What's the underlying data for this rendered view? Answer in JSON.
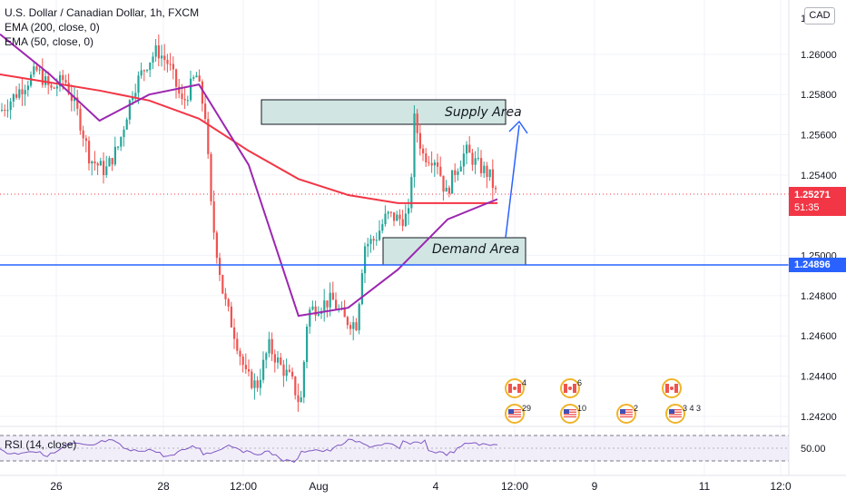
{
  "legend": {
    "title": "U.S. Dollar / Canadian Dollar, 1h, FXCM",
    "ema200": "EMA (200, close, 0)",
    "ema50": "EMA (50, close, 0)"
  },
  "currency_badge": "CAD",
  "price_axis": [
    "1.26000",
    "1.25800",
    "1.25600",
    "1.25400",
    "1.25000",
    "1.24800",
    "1.24600",
    "1.24400",
    "1.24200"
  ],
  "price_axis_top_partial": "1.2",
  "current_price": {
    "value": "1.25271",
    "countdown": "51:35"
  },
  "horizontal_line_price": "1.24896",
  "time_axis": [
    "26",
    "28",
    "12:00",
    "Aug",
    "4",
    "12:00",
    "9",
    "11",
    "12:0"
  ],
  "annotations": {
    "supply": "Supply Area",
    "demand": "Demand Area"
  },
  "rsi": {
    "label": "RSI (14, close)",
    "level": "50.00"
  },
  "events": [
    {
      "flag": "ca",
      "count": "4"
    },
    {
      "flag": "us",
      "count": "29"
    },
    {
      "flag": "ca",
      "count": "6"
    },
    {
      "flag": "us",
      "count": "10"
    },
    {
      "flag": "us",
      "count": "2"
    },
    {
      "flag": "ca",
      "count": ""
    },
    {
      "flag": "us",
      "count": "3 4 3"
    }
  ],
  "colors": {
    "bull": "#26a69a",
    "bear": "#ef5350",
    "ema200": "#f23645",
    "ema50": "#9c27b0",
    "hline": "#2962ff",
    "zone": "#d1e6e2",
    "rsi": "#7e57c2"
  },
  "chart_data": {
    "type": "candlestick",
    "ylim": [
      1.2415,
      1.2627
    ],
    "series": [
      {
        "name": "EMA (200, close, 0)",
        "values": [
          1.259,
          1.2586,
          1.2582,
          1.2577,
          1.2568,
          1.2552,
          1.2538,
          1.253,
          1.2526,
          1.2526,
          1.2526
        ]
      },
      {
        "name": "EMA (50, close, 0)",
        "values": [
          1.261,
          1.259,
          1.2567,
          1.258,
          1.2585,
          1.2545,
          1.247,
          1.2474,
          1.2493,
          1.2518,
          1.2528
        ]
      }
    ]
  }
}
